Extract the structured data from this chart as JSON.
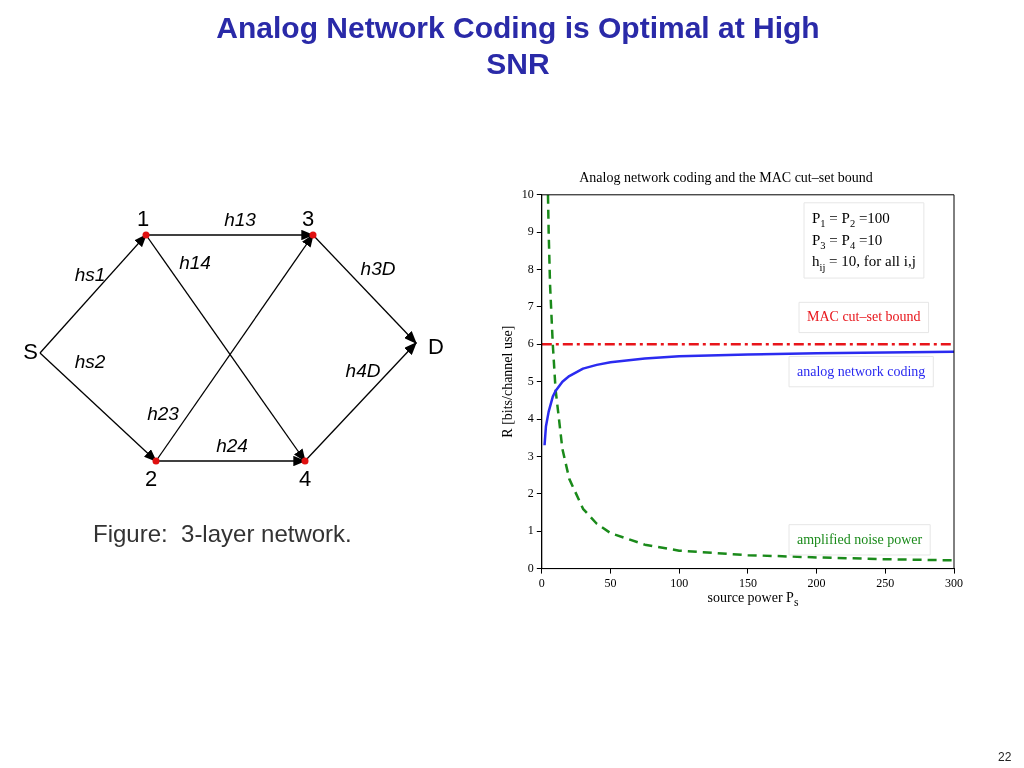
{
  "chart_data": [
    {
      "type": "other",
      "title": "Analog Network Coding is Optimal at High SNR",
      "annotations": [
        "S",
        "1",
        "2",
        "3",
        "4",
        "D",
        "hs1",
        "hs2",
        "h13",
        "h14",
        "h23",
        "h24",
        "h3D",
        "h4D",
        "Figure:  3-layer network.",
        "22"
      ]
    },
    {
      "type": "line",
      "title": "Analog network coding and the MAC cut–set bound",
      "xlabel": "source power P$_{s}$",
      "ylabel": "R [bits/channel use]",
      "xlim": [
        0,
        300
      ],
      "ylim": [
        0,
        10
      ],
      "xticks": [
        0,
        50,
        100,
        150,
        200,
        250,
        300
      ],
      "yticks": [
        0,
        1,
        2,
        3,
        4,
        5,
        6,
        7,
        8,
        9,
        10
      ],
      "grid": false,
      "legend": false,
      "series": [
        {
          "name": "analog network coding",
          "color": "#2b2bf0",
          "line_style": "solid",
          "x": [
            2,
            3,
            5,
            8,
            10,
            15,
            20,
            30,
            40,
            50,
            75,
            100,
            150,
            200,
            250,
            300
          ],
          "values": [
            3.3,
            3.8,
            4.2,
            4.6,
            4.75,
            5.0,
            5.15,
            5.35,
            5.45,
            5.52,
            5.62,
            5.68,
            5.73,
            5.76,
            5.78,
            5.8
          ]
        },
        {
          "name": "amplified noise power",
          "color": "#1a8a1a",
          "line_style": "dashed",
          "x": [
            4.5,
            5,
            6,
            8,
            10,
            15,
            20,
            30,
            40,
            50,
            75,
            100,
            150,
            200,
            250,
            300
          ],
          "values": [
            10,
            9,
            7.6,
            6,
            4.8,
            3.2,
            2.4,
            1.6,
            1.2,
            0.95,
            0.64,
            0.48,
            0.36,
            0.3,
            0.25,
            0.22
          ]
        }
      ],
      "ref_lines": [
        {
          "axis": "y",
          "value": 6,
          "label": "MAC cut–set bound",
          "color": "#e8151b",
          "line_style": "dashed"
        }
      ],
      "annotations": [
        "P$_{1}$ = P$_{2}$ =100",
        "P$_{3}$ = P$_{4}$ =10",
        "h$_{ij}$ = 10, for all i,j"
      ]
    }
  ]
}
